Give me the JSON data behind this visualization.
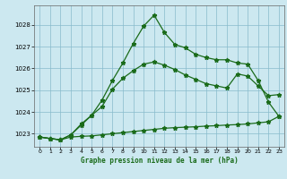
{
  "title": "Graphe pression niveau de la mer (hPa)",
  "background_color": "#cce8f0",
  "grid_color": "#88bbcc",
  "line_color": "#1a6b1a",
  "xlim": [
    -0.5,
    23.5
  ],
  "ylim": [
    1022.4,
    1028.9
  ],
  "yticks": [
    1023,
    1024,
    1025,
    1026,
    1027,
    1028
  ],
  "xticks": [
    0,
    1,
    2,
    3,
    4,
    5,
    6,
    7,
    8,
    9,
    10,
    11,
    12,
    13,
    14,
    15,
    16,
    17,
    18,
    19,
    20,
    21,
    22,
    23
  ],
  "line1_x": [
    0,
    1,
    2,
    3,
    4,
    5,
    6,
    7,
    8,
    9,
    10,
    11,
    12,
    13,
    14,
    15,
    16,
    17,
    18,
    19,
    20,
    21,
    22,
    23
  ],
  "line1_y": [
    1022.85,
    1022.78,
    1022.72,
    1022.85,
    1022.88,
    1022.9,
    1022.95,
    1023.0,
    1023.05,
    1023.1,
    1023.15,
    1023.2,
    1023.25,
    1023.28,
    1023.3,
    1023.32,
    1023.35,
    1023.37,
    1023.4,
    1023.42,
    1023.45,
    1023.5,
    1023.55,
    1023.8
  ],
  "line2_x": [
    0,
    1,
    2,
    3,
    4,
    5,
    6,
    7,
    8,
    9,
    10,
    11,
    12,
    13,
    14,
    15,
    16,
    17,
    18,
    19,
    20,
    21,
    22,
    23
  ],
  "line2_y": [
    1022.85,
    1022.78,
    1022.72,
    1022.95,
    1023.45,
    1023.85,
    1024.25,
    1025.05,
    1025.55,
    1025.9,
    1026.2,
    1026.3,
    1026.15,
    1025.95,
    1025.7,
    1025.5,
    1025.3,
    1025.2,
    1025.1,
    1025.75,
    1025.65,
    1025.2,
    1024.75,
    1024.8
  ],
  "line3_x": [
    0,
    1,
    2,
    3,
    4,
    5,
    6,
    7,
    8,
    9,
    10,
    11,
    12,
    13,
    14,
    15,
    16,
    17,
    18,
    19,
    20,
    21,
    22,
    23
  ],
  "line3_y": [
    1022.85,
    1022.78,
    1022.72,
    1022.95,
    1023.4,
    1023.85,
    1024.55,
    1025.45,
    1026.25,
    1027.15,
    1027.95,
    1028.45,
    1027.65,
    1027.1,
    1026.95,
    1026.65,
    1026.5,
    1026.4,
    1026.4,
    1026.25,
    1026.2,
    1025.45,
    1024.45,
    1023.8
  ]
}
